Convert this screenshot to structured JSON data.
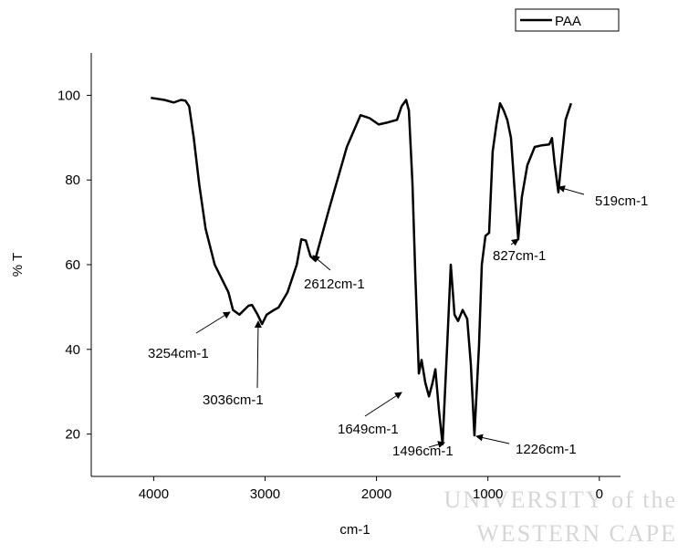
{
  "chart_data": {
    "type": "line",
    "x_label": "cm-1",
    "y_label": "% T",
    "x": [
      4025,
      3902,
      3820,
      3755,
      3714,
      3681,
      3640,
      3591,
      3534,
      3452,
      3329,
      3288,
      3231,
      3149,
      3117,
      3067,
      3027,
      2986,
      2920,
      2879,
      2798,
      2716,
      2675,
      2634,
      2593,
      2552,
      2429,
      2266,
      2143,
      2061,
      1980,
      1898,
      1816,
      1775,
      1734,
      1709,
      1677,
      1652,
      1620,
      1595,
      1562,
      1529,
      1497,
      1472,
      1440,
      1407,
      1366,
      1333,
      1300,
      1268,
      1227,
      1186,
      1153,
      1121,
      1080,
      1055,
      1022,
      989,
      957,
      924,
      891,
      858,
      826,
      793,
      760,
      728,
      695,
      646,
      580,
      515,
      450,
      425,
      401,
      368,
      336,
      303,
      254
    ],
    "series": [
      {
        "name": "PAA",
        "color": "#000000",
        "values": [
          99.4,
          98.9,
          98.3,
          98.9,
          98.7,
          97.4,
          90,
          79,
          68.5,
          60,
          53.5,
          49.3,
          48.2,
          50.3,
          50.5,
          48.2,
          46,
          48.2,
          49.3,
          49.9,
          53.5,
          60,
          66,
          65.7,
          62,
          61,
          72.8,
          87.8,
          95.3,
          94.6,
          93.1,
          93.6,
          94.2,
          97.4,
          98.9,
          96.4,
          79.2,
          57.8,
          34.3,
          37.5,
          32.1,
          28.9,
          32.1,
          35.3,
          25.7,
          17.6,
          40.7,
          60,
          48.2,
          46.7,
          49.3,
          47.2,
          36.4,
          19.7,
          40.7,
          60,
          66.8,
          67.5,
          86.7,
          93.1,
          98.1,
          96.4,
          94.2,
          89.9,
          77.5,
          66,
          76,
          83.5,
          87.8,
          88.2,
          88.4,
          89.9,
          83.9,
          77.1,
          85.7,
          94.2,
          98.1
        ]
      }
    ],
    "xlim": [
      4560,
      -190
    ],
    "xticks": [
      4000,
      3000,
      2000,
      1000,
      0
    ],
    "ylim": [
      10,
      110
    ],
    "yticks": [
      20,
      40,
      60,
      80,
      100
    ],
    "grid": false,
    "legend": "top-right",
    "annotations": [
      "3254cm-1",
      "3036cm-1",
      "2612cm-1",
      "1649cm-1",
      "1496cm-1",
      "1226cm-1",
      "827cm-1",
      "519cm-1"
    ],
    "watermark": [
      "UNIVERSITY of the",
      "WESTERN CAPE"
    ]
  }
}
